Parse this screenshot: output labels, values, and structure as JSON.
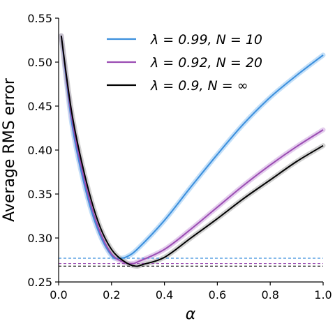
{
  "chart_data": {
    "type": "line",
    "xlabel": "α",
    "ylabel": "Average RMS error",
    "xlim": [
      0.0,
      1.0
    ],
    "ylim": [
      0.25,
      0.55
    ],
    "xticks": [
      "0.0",
      "0.2",
      "0.4",
      "0.6",
      "0.8",
      "1.0"
    ],
    "yticks": [
      "0.25",
      "0.30",
      "0.35",
      "0.40",
      "0.45",
      "0.50",
      "0.55"
    ],
    "grid": false,
    "legend_position": "top-right",
    "series": [
      {
        "name": "λ = 0.99, N = 10",
        "color": "#3b8fdd",
        "band_color": "#a9d2f5",
        "x": [
          0.01,
          0.05,
          0.1,
          0.15,
          0.2,
          0.23,
          0.26,
          0.3,
          0.4,
          0.5,
          0.6,
          0.7,
          0.8,
          0.9,
          1.0
        ],
        "y": [
          0.53,
          0.43,
          0.357,
          0.308,
          0.28,
          0.277,
          0.279,
          0.288,
          0.32,
          0.358,
          0.395,
          0.43,
          0.46,
          0.485,
          0.508
        ],
        "min_error": 0.277
      },
      {
        "name": "λ = 0.92, N = 20",
        "color": "#9b4db3",
        "band_color": "#d9b8e6",
        "x": [
          0.01,
          0.05,
          0.1,
          0.15,
          0.2,
          0.25,
          0.28,
          0.3,
          0.4,
          0.5,
          0.6,
          0.7,
          0.8,
          0.9,
          1.0
        ],
        "y": [
          0.53,
          0.436,
          0.363,
          0.312,
          0.282,
          0.272,
          0.271,
          0.273,
          0.287,
          0.31,
          0.335,
          0.36,
          0.383,
          0.404,
          0.423
        ],
        "min_error": 0.271
      },
      {
        "name": "λ = 0.9, N = ∞",
        "color": "#000000",
        "band_color": "#bdbdbd",
        "x": [
          0.01,
          0.05,
          0.1,
          0.15,
          0.2,
          0.25,
          0.29,
          0.32,
          0.4,
          0.5,
          0.6,
          0.7,
          0.8,
          0.9,
          1.0
        ],
        "y": [
          0.53,
          0.442,
          0.37,
          0.318,
          0.287,
          0.273,
          0.268,
          0.27,
          0.278,
          0.3,
          0.322,
          0.345,
          0.366,
          0.387,
          0.405
        ],
        "min_error": 0.268
      }
    ]
  }
}
